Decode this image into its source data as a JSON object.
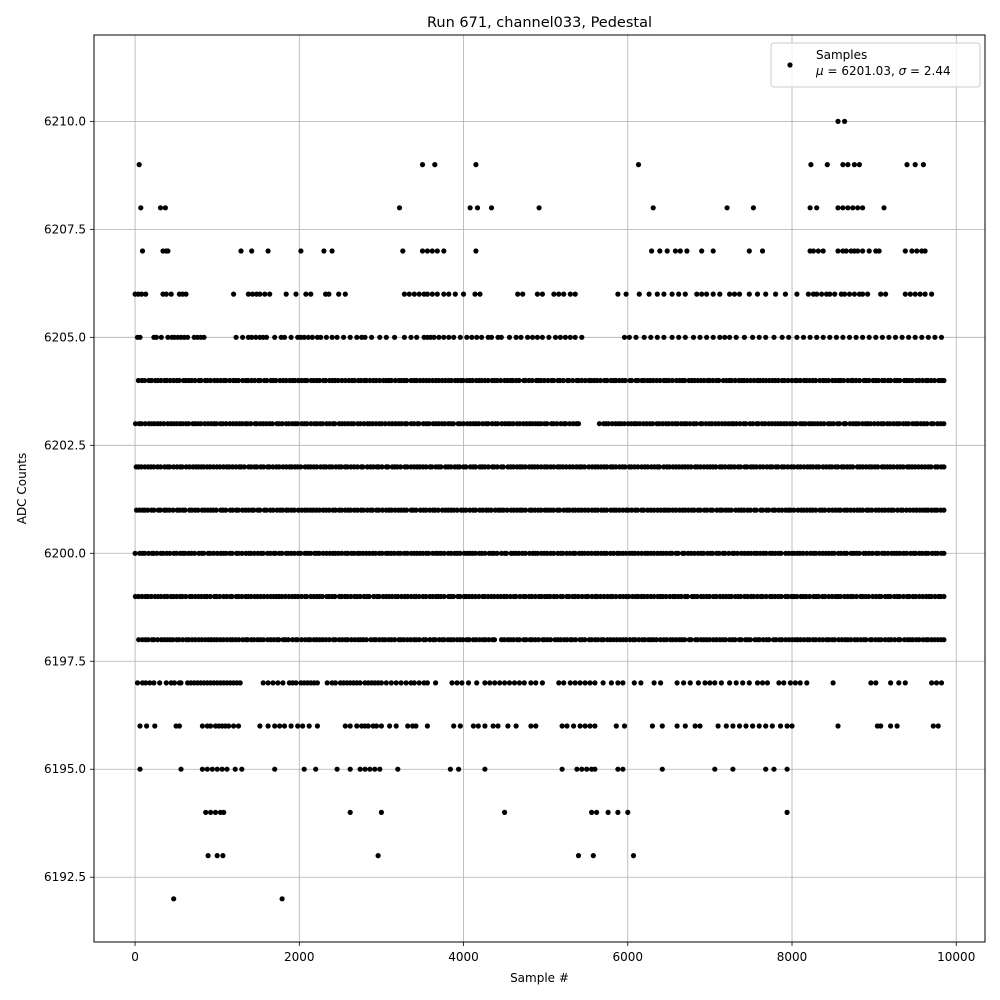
{
  "chart_data": {
    "type": "scatter",
    "title": "Run 671, channel033, Pedestal",
    "xlabel": "Sample #",
    "ylabel": "ADC Counts",
    "xlim": [
      -500,
      10350
    ],
    "ylim": [
      6191,
      6212
    ],
    "x_ticks": [
      0,
      2000,
      4000,
      6000,
      8000,
      10000
    ],
    "y_ticks": [
      6192.5,
      6195.0,
      6197.5,
      6200.0,
      6202.5,
      6205.0,
      6207.5,
      6210.0
    ],
    "x_tick_labels": [
      "0",
      "2000",
      "4000",
      "6000",
      "8000",
      "10000"
    ],
    "y_tick_labels": [
      "6192.5",
      "6195.0",
      "6197.5",
      "6200.0",
      "6202.5",
      "6205.0",
      "6207.5",
      "6210.0"
    ],
    "grid": true,
    "legend_position": "top-right",
    "marker_color": "#000000",
    "series": [
      {
        "name": "Samples",
        "stats": {
          "mu": "6201.03",
          "sigma": "2.44"
        },
        "dense_levels": [
          {
            "y": 6204,
            "ranges": [
              [
                40,
                9850
              ]
            ]
          },
          {
            "y": 6203,
            "ranges": [
              [
                0,
                5400
              ],
              [
                5650,
                9850
              ]
            ]
          },
          {
            "y": 6202,
            "ranges": [
              [
                0,
                9850
              ]
            ]
          },
          {
            "y": 6201,
            "ranges": [
              [
                0,
                9850
              ]
            ]
          },
          {
            "y": 6200,
            "ranges": [
              [
                0,
                9850
              ]
            ]
          },
          {
            "y": 6199,
            "ranges": [
              [
                0,
                9850
              ]
            ]
          },
          {
            "y": 6198,
            "ranges": [
              [
                40,
                4400
              ],
              [
                4450,
                9850
              ]
            ]
          }
        ],
        "sparse_levels": [
          {
            "y": 6205,
            "x": [
              30,
              60,
              230,
              260,
              320,
              400,
              450,
              480,
              520,
              560,
              600,
              640,
              720,
              760,
              800,
              840,
              1230,
              1310,
              1380,
              1420,
              1470,
              1520,
              1560,
              1600,
              1700,
              1780,
              1820,
              1900,
              1980,
              2020,
              2060,
              2110,
              2160,
              2220,
              2260,
              2330,
              2400,
              2460,
              2540,
              2620,
              2700,
              2760,
              2800,
              2880,
              2980,
              3060,
              3160,
              3280,
              3360,
              3430,
              3520,
              3560,
              3600,
              3640,
              3700,
              3760,
              3820,
              3880,
              3960,
              4040,
              4100,
              4160,
              4220,
              4300,
              4340,
              4420,
              4460,
              4560,
              4640,
              4700,
              4780,
              4840,
              4900,
              4960,
              5040,
              5120,
              5180,
              5240,
              5300,
              5360,
              5440,
              5960,
              6020,
              6100,
              6200,
              6280,
              6360,
              6440,
              6540,
              6620,
              6700,
              6800,
              6880,
              6960,
              7040,
              7120,
              7180,
              7240,
              7320,
              7420,
              7520,
              7600,
              7680,
              7780,
              7880,
              7960,
              8060,
              8140,
              8220,
              8300,
              8380,
              8460,
              8540,
              8620,
              8700,
              8780,
              8860,
              8940,
              9020,
              9100,
              9180,
              9260,
              9340,
              9420,
              9500,
              9580,
              9660,
              9740,
              9820
            ]
          },
          {
            "y": 6206,
            "x": [
              0,
              40,
              80,
              130,
              340,
              380,
              440,
              540,
              580,
              620,
              1200,
              1380,
              1430,
              1480,
              1520,
              1580,
              1640,
              1840,
              1960,
              2080,
              2140,
              2320,
              2360,
              2480,
              2560,
              3280,
              3340,
              3400,
              3460,
              3520,
              3560,
              3620,
              3680,
              3760,
              3820,
              3900,
              4000,
              4140,
              4200,
              4660,
              4720,
              4900,
              4960,
              5100,
              5160,
              5220,
              5300,
              5360,
              5880,
              5980,
              6140,
              6260,
              6360,
              6440,
              6540,
              6620,
              6700,
              6840,
              6900,
              6960,
              7040,
              7120,
              7240,
              7300,
              7360,
              7480,
              7580,
              7680,
              7800,
              7920,
              8060,
              8200,
              8260,
              8300,
              8360,
              8420,
              8460,
              8520,
              8600,
              8640,
              8700,
              8760,
              8820,
              8860,
              8920,
              9080,
              9140,
              9380,
              9440,
              9500,
              9560,
              9620,
              9700
            ]
          },
          {
            "y": 6207,
            "x": [
              90,
              340,
              380,
              400,
              1290,
              1420,
              1620,
              2020,
              2300,
              2400,
              3260,
              3500,
              3560,
              3620,
              3680,
              3760,
              4150,
              6290,
              6390,
              6480,
              6580,
              6640,
              6720,
              6900,
              7040,
              7480,
              7640,
              8220,
              8260,
              8320,
              8380,
              8560,
              8620,
              8660,
              8720,
              8760,
              8800,
              8860,
              8940,
              9020,
              9060,
              9380,
              9460,
              9520,
              9580,
              9620
            ]
          },
          {
            "y": 6208,
            "x": [
              70,
              310,
              370,
              3220,
              4080,
              4170,
              4340,
              4920,
              6310,
              7210,
              7530,
              8220,
              8300,
              8560,
              8620,
              8680,
              8740,
              8800,
              8860,
              9120
            ]
          },
          {
            "y": 6209,
            "x": [
              50,
              3500,
              3650,
              4150,
              6130,
              8230,
              8430,
              8620,
              8680,
              8760,
              8820,
              9400,
              9500,
              9600
            ]
          },
          {
            "y": 6210,
            "x": [
              8560,
              8640
            ]
          },
          {
            "y": 6197,
            "x": [
              30,
              90,
              130,
              180,
              230,
              300,
              380,
              440,
              480,
              540,
              560,
              640,
              680,
              720,
              760,
              800,
              840,
              880,
              920,
              960,
              1000,
              1040,
              1080,
              1120,
              1160,
              1200,
              1240,
              1280,
              1560,
              1620,
              1680,
              1740,
              1800,
              1880,
              1920,
              1960,
              2020,
              2060,
              2100,
              2140,
              2180,
              2220,
              2340,
              2400,
              2440,
              2500,
              2540,
              2580,
              2620,
              2660,
              2700,
              2740,
              2800,
              2840,
              2880,
              2920,
              2960,
              3000,
              3060,
              3120,
              3180,
              3240,
              3300,
              3360,
              3400,
              3460,
              3520,
              3560,
              3660,
              3860,
              3920,
              3980,
              4060,
              4160,
              4260,
              4320,
              4380,
              4440,
              4500,
              4560,
              4620,
              4680,
              4740,
              4820,
              4880,
              4960,
              5160,
              5220,
              5300,
              5360,
              5420,
              5480,
              5540,
              5600,
              5700,
              5800,
              5880,
              5940,
              6080,
              6160,
              6320,
              6400,
              6600,
              6680,
              6760,
              6860,
              6940,
              7000,
              7060,
              7140,
              7240,
              7320,
              7400,
              7480,
              7580,
              7640,
              7700,
              7840,
              7900,
              7980,
              8040,
              8100,
              8180,
              8500,
              8960,
              9020,
              9200,
              9300,
              9380,
              9700,
              9760,
              9820
            ]
          },
          {
            "y": 6196,
            "x": [
              60,
              140,
              240,
              500,
              540,
              820,
              880,
              920,
              980,
              1020,
              1060,
              1100,
              1140,
              1200,
              1260,
              1520,
              1620,
              1700,
              1760,
              1820,
              1900,
              1980,
              2040,
              2120,
              2220,
              2560,
              2620,
              2700,
              2760,
              2800,
              2840,
              2900,
              2940,
              3000,
              3100,
              3180,
              3320,
              3380,
              3420,
              3560,
              3880,
              3960,
              4120,
              4180,
              4260,
              4360,
              4420,
              4540,
              4640,
              4820,
              4880,
              5200,
              5260,
              5340,
              5420,
              5480,
              5540,
              5600,
              5860,
              5960,
              6300,
              6420,
              6600,
              6700,
              6820,
              6880,
              7100,
              7200,
              7280,
              7360,
              7440,
              7520,
              7600,
              7680,
              7760,
              7860,
              7940,
              8000,
              8560,
              9040,
              9080,
              9200,
              9280,
              9720,
              9780
            ]
          },
          {
            "y": 6195,
            "x": [
              60,
              560,
              820,
              880,
              940,
              1000,
              1060,
              1120,
              1220,
              1300,
              1700,
              2060,
              2200,
              2460,
              2620,
              2740,
              2800,
              2860,
              2920,
              2980,
              3200,
              3840,
              3940,
              4260,
              5200,
              5380,
              5440,
              5500,
              5560,
              5600,
              5880,
              5940,
              6420,
              7060,
              7280,
              7680,
              7780,
              7940
            ]
          },
          {
            "y": 6194,
            "x": [
              860,
              920,
              980,
              1040,
              1080,
              2620,
              3000,
              4500,
              5560,
              5620,
              5760,
              5880,
              6000,
              7940
            ]
          },
          {
            "y": 6193,
            "x": [
              890,
              1000,
              1070,
              2960,
              5400,
              5580,
              6070
            ]
          },
          {
            "y": 6192,
            "x": [
              470,
              1790
            ]
          }
        ]
      }
    ]
  }
}
